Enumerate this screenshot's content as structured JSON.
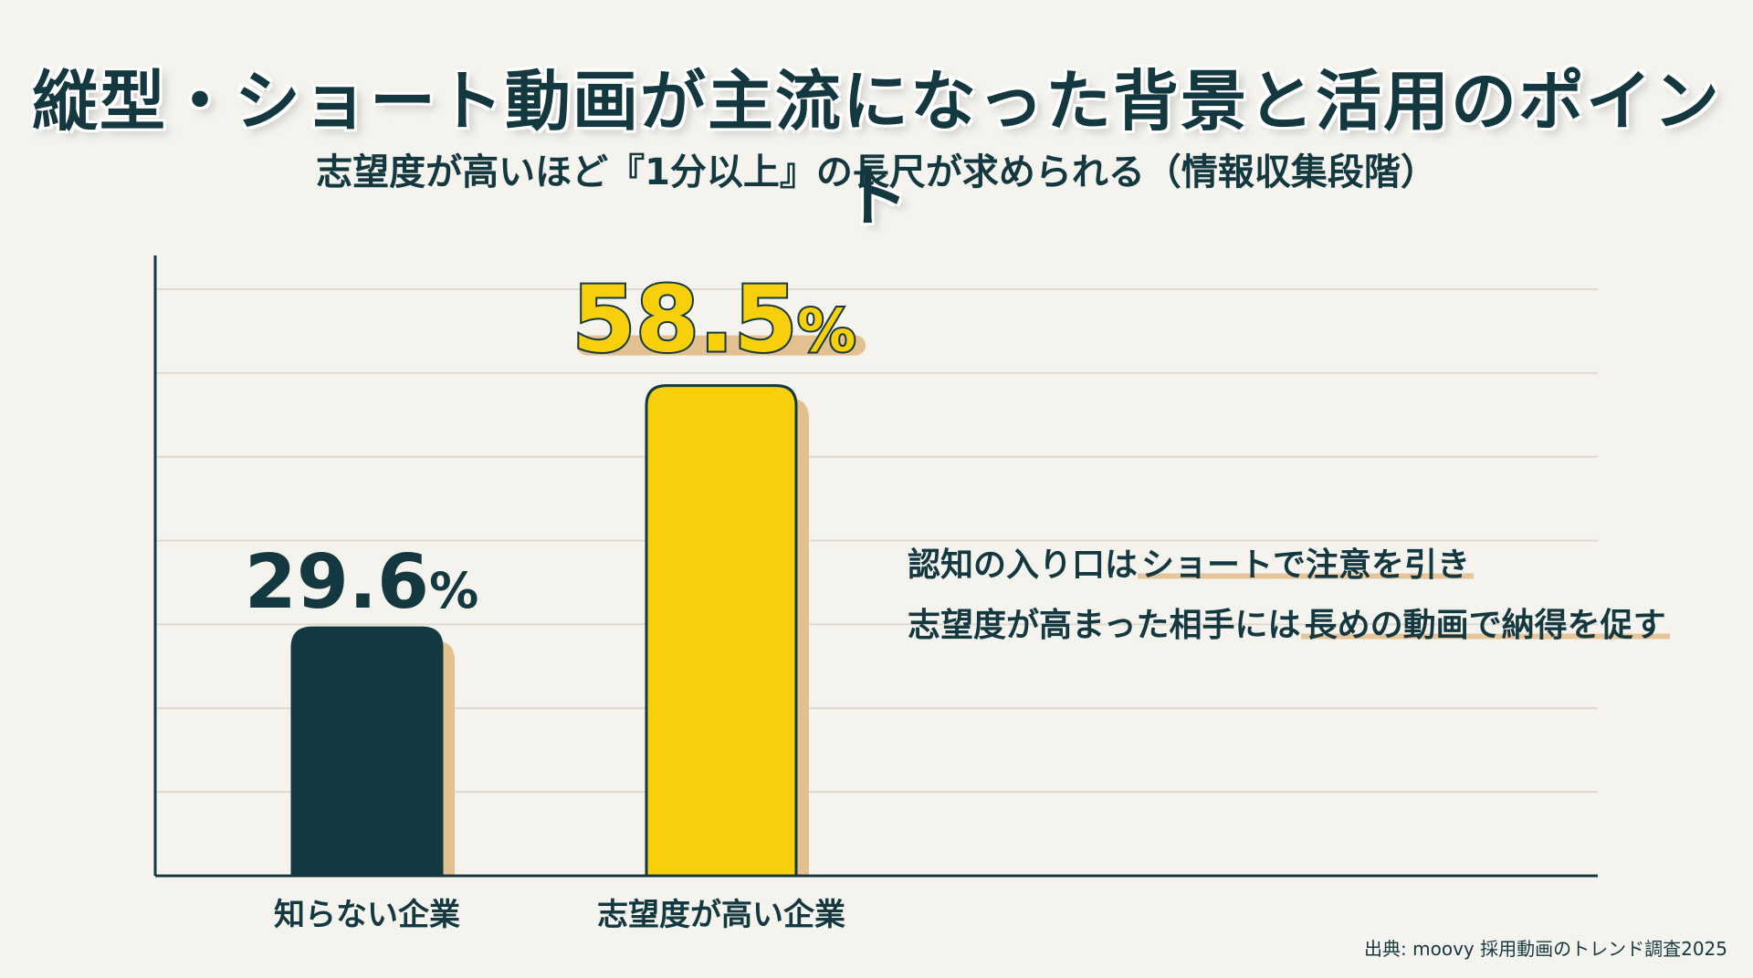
{
  "header": {
    "title": "縦型・ショート動画が主流になった背景と活用のポイント",
    "subtitle": "志望度が高いほど『1分以上』の長尺が求められる（情報収集段階）"
  },
  "chart_data": {
    "type": "bar",
    "categories": [
      "知らない企業",
      "志望度が高い企業"
    ],
    "values": [
      29.6,
      58.5
    ],
    "value_labels": [
      "29.6%",
      "58.5%"
    ],
    "unit": "%",
    "ylim": [
      0,
      70
    ],
    "grid": true,
    "colors": [
      "#14383f",
      "#f7cf0a"
    ],
    "shadow_color": "#e2c08f",
    "xlabel": "",
    "ylabel": ""
  },
  "annotation": {
    "line1_plain": "認知の入り口は",
    "line1_highlight": "ショートで注意を引き",
    "line2_plain": "志望度が高まった相手には",
    "line2_highlight": "長めの動画で納得を促す"
  },
  "source": "出典: moovy 採用動画のトレンド調査2025"
}
